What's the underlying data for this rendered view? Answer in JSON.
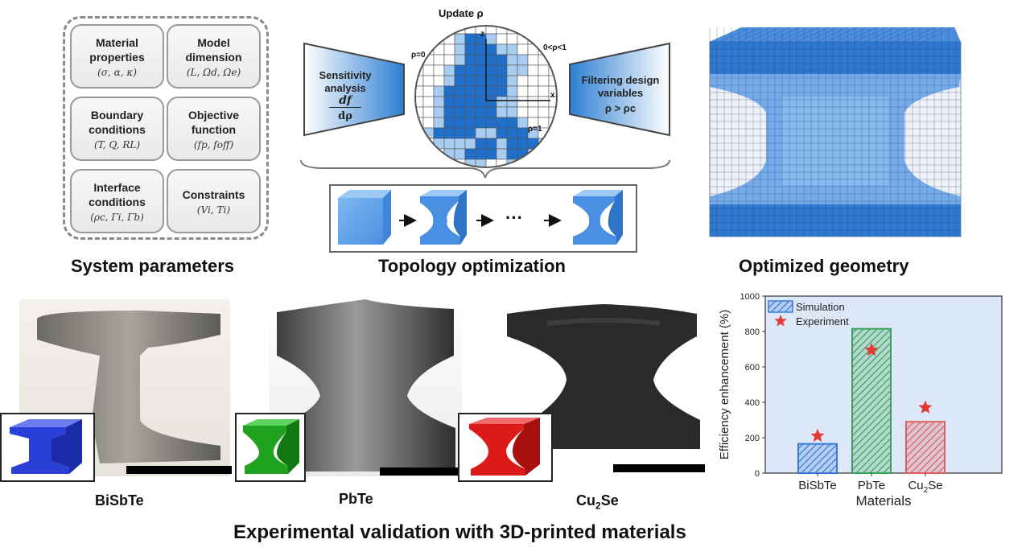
{
  "system_parameters": {
    "title": "System parameters",
    "boxes": [
      {
        "title": "Material\nproperties",
        "sub": "(σ, α, κ)"
      },
      {
        "title": "Model\ndimension",
        "sub": "(L, Ωd, Ωe)"
      },
      {
        "title": "Boundary\nconditions",
        "sub": "(T, Q, RL)"
      },
      {
        "title": "Objective\nfunction",
        "sub": "(fp, foff)"
      },
      {
        "title": "Interface\nconditions",
        "sub": "(ρc, Γi, Γb)"
      },
      {
        "title": "Constraints",
        "sub": "(Vi, Ti)"
      }
    ]
  },
  "topology": {
    "title": "Topology optimization",
    "update_label": "Update ρ",
    "sensitivity_label": "Sensitivity\nanalysis",
    "sensitivity_num": "df",
    "sensitivity_den": "dρ",
    "filter_label": "Filtering design\nvariables",
    "filter_rule": "ρ > ρc",
    "rho0": "ρ=0",
    "rho_mid": "0<ρ<1",
    "rho1": "ρ=1",
    "axis_z": "z",
    "axis_x": "x",
    "ellipsis": "···"
  },
  "geometry": {
    "title": "Optimized geometry"
  },
  "samples": {
    "items": [
      {
        "name": "BiSbTe",
        "color": "#2a3fd6"
      },
      {
        "name": "PbTe",
        "color": "#1fa31f"
      },
      {
        "name": "Cu2Se",
        "color": "#dd1a1a"
      }
    ],
    "cu_base": "Cu",
    "cu_sub": "2",
    "cu_end": "Se"
  },
  "footer": {
    "title": "Experimental validation with 3D-printed materials"
  },
  "chart_data": {
    "type": "bar",
    "categories": [
      "BiSbTe",
      "PbTe",
      "Cu2Se"
    ],
    "tick_labels": [
      {
        "base": "BiSbTe",
        "sub": "",
        "end": ""
      },
      {
        "base": "PbTe",
        "sub": "",
        "end": ""
      },
      {
        "base": "Cu",
        "sub": "2",
        "end": "Se"
      }
    ],
    "series": [
      {
        "name": "Simulation",
        "kind": "bar",
        "values": [
          165,
          815,
          290
        ],
        "colors": [
          "#3a7ad6",
          "#3aa35a",
          "#e06060"
        ]
      },
      {
        "name": "Experiment",
        "kind": "marker",
        "values": [
          210,
          695,
          370
        ],
        "color": "#e53935"
      }
    ],
    "xlabel": "Materials",
    "ylabel": "Efficiency enhancement (%)",
    "ylim": [
      0,
      1000
    ],
    "yticks": [
      0,
      200,
      400,
      600,
      800,
      1000
    ],
    "legend_position": "top-left",
    "background": "#dce8f8"
  }
}
